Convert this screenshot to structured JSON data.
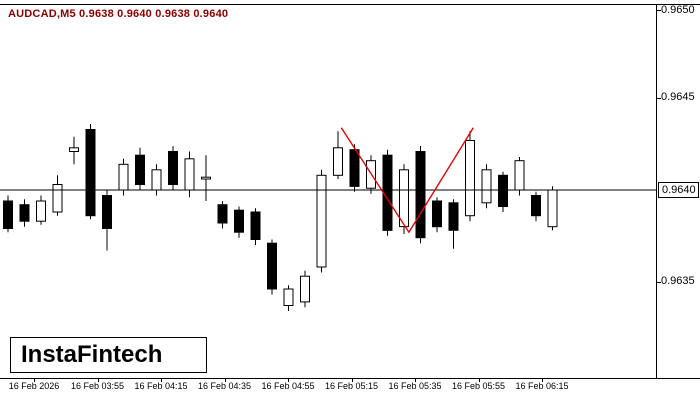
{
  "header": {
    "quote_line": "AUDCAD,M5  0.9638 0.9640 0.9638 0.9640"
  },
  "logo": {
    "text": "InstaFintech"
  },
  "chart_data": {
    "type": "candlestick",
    "symbol": "AUDCAD",
    "timeframe": "M5",
    "ohlc_readout": {
      "open": "0.9638",
      "high": "0.9640",
      "low": "0.9638",
      "close": "0.9640"
    },
    "current_price": "0.9640",
    "price_line": 0.964,
    "y_axis": {
      "labels": [
        "0.9650",
        "0.9645",
        "0.9640",
        "0.9635"
      ],
      "min": 0.963,
      "max": 0.965
    },
    "x_labels": [
      "16 Feb 2026",
      "16 Feb 03:55",
      "16 Feb 04:15",
      "16 Feb 04:35",
      "16 Feb 04:55",
      "16 Feb 05:15",
      "16 Feb 05:35",
      "16 Feb 05:55",
      "16 Feb 06:15"
    ],
    "grid": false,
    "candles": [
      {
        "o": 0.96394,
        "h": 0.96397,
        "l": 0.96377,
        "c": 0.96379
      },
      {
        "o": 0.96392,
        "h": 0.96395,
        "l": 0.9638,
        "c": 0.96383
      },
      {
        "o": 0.96383,
        "h": 0.96397,
        "l": 0.96381,
        "c": 0.96394
      },
      {
        "o": 0.96388,
        "h": 0.96408,
        "l": 0.96386,
        "c": 0.96403
      },
      {
        "o": 0.96421,
        "h": 0.96429,
        "l": 0.96414,
        "c": 0.96423
      },
      {
        "o": 0.96433,
        "h": 0.96436,
        "l": 0.96384,
        "c": 0.96386
      },
      {
        "o": 0.96397,
        "h": 0.964,
        "l": 0.96367,
        "c": 0.96379
      },
      {
        "o": 0.964,
        "h": 0.96417,
        "l": 0.96397,
        "c": 0.96414
      },
      {
        "o": 0.96419,
        "h": 0.96423,
        "l": 0.964,
        "c": 0.96403
      },
      {
        "o": 0.964,
        "h": 0.96414,
        "l": 0.96397,
        "c": 0.96411
      },
      {
        "o": 0.96421,
        "h": 0.96424,
        "l": 0.964,
        "c": 0.96403
      },
      {
        "o": 0.964,
        "h": 0.96421,
        "l": 0.96396,
        "c": 0.96417
      },
      {
        "o": 0.96406,
        "h": 0.96419,
        "l": 0.96394,
        "c": 0.96407
      },
      {
        "o": 0.96392,
        "h": 0.96394,
        "l": 0.96379,
        "c": 0.96382
      },
      {
        "o": 0.96389,
        "h": 0.96391,
        "l": 0.96374,
        "c": 0.96377
      },
      {
        "o": 0.96388,
        "h": 0.9639,
        "l": 0.9637,
        "c": 0.96373
      },
      {
        "o": 0.96371,
        "h": 0.96373,
        "l": 0.96343,
        "c": 0.96346
      },
      {
        "o": 0.96337,
        "h": 0.96348,
        "l": 0.96334,
        "c": 0.96346
      },
      {
        "o": 0.96339,
        "h": 0.96356,
        "l": 0.96336,
        "c": 0.96353
      },
      {
        "o": 0.96358,
        "h": 0.96411,
        "l": 0.96355,
        "c": 0.96408
      },
      {
        "o": 0.96408,
        "h": 0.96432,
        "l": 0.96406,
        "c": 0.96423
      },
      {
        "o": 0.96422,
        "h": 0.96425,
        "l": 0.96399,
        "c": 0.96402
      },
      {
        "o": 0.96401,
        "h": 0.96419,
        "l": 0.96398,
        "c": 0.96416
      },
      {
        "o": 0.96419,
        "h": 0.96422,
        "l": 0.96375,
        "c": 0.96378
      },
      {
        "o": 0.9638,
        "h": 0.96414,
        "l": 0.96376,
        "c": 0.96411
      },
      {
        "o": 0.96421,
        "h": 0.96424,
        "l": 0.96371,
        "c": 0.96374
      },
      {
        "o": 0.96394,
        "h": 0.96396,
        "l": 0.96377,
        "c": 0.9638
      },
      {
        "o": 0.96393,
        "h": 0.96395,
        "l": 0.96368,
        "c": 0.96378
      },
      {
        "o": 0.96386,
        "h": 0.96432,
        "l": 0.96383,
        "c": 0.96427
      },
      {
        "o": 0.96393,
        "h": 0.96414,
        "l": 0.9639,
        "c": 0.96411
      },
      {
        "o": 0.96408,
        "h": 0.9641,
        "l": 0.96388,
        "c": 0.96391
      },
      {
        "o": 0.964,
        "h": 0.96418,
        "l": 0.96397,
        "c": 0.96416
      },
      {
        "o": 0.96397,
        "h": 0.96399,
        "l": 0.96383,
        "c": 0.96386
      },
      {
        "o": 0.9638,
        "h": 0.96402,
        "l": 0.96378,
        "c": 0.964
      }
    ],
    "zigzag": [
      {
        "i": 20.2,
        "p": 0.96434
      },
      {
        "i": 24.3,
        "p": 0.96377
      },
      {
        "i": 28.2,
        "p": 0.96434
      }
    ],
    "colors": {
      "bull": "#ffffff",
      "bear": "#000000",
      "zigzag": "#e60000",
      "axis": "#000000",
      "quote": "#8b0000",
      "background": "#ffffff"
    }
  }
}
